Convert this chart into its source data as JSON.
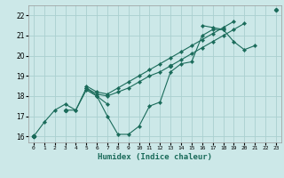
{
  "title": "",
  "xlabel": "Humidex (Indice chaleur)",
  "ylabel": "",
  "bg_color": "#cce8e8",
  "line_color": "#1a6b5a",
  "grid_color": "#aad0d0",
  "xlim": [
    -0.5,
    23.5
  ],
  "ylim": [
    15.7,
    22.5
  ],
  "xticks": [
    0,
    1,
    2,
    3,
    4,
    5,
    6,
    7,
    8,
    9,
    10,
    11,
    12,
    13,
    14,
    15,
    16,
    17,
    18,
    19,
    20,
    21,
    22,
    23
  ],
  "yticks": [
    16,
    17,
    18,
    19,
    20,
    21,
    22
  ],
  "series": [
    [
      16.0,
      16.7,
      17.3,
      17.6,
      17.3,
      18.3,
      18.0,
      17.0,
      16.1,
      16.1,
      16.5,
      17.5,
      17.7,
      19.2,
      19.6,
      19.7,
      21.0,
      21.3,
      21.3,
      20.7,
      20.3,
      20.5,
      null,
      22.3
    ],
    [
      16.0,
      null,
      null,
      17.3,
      17.3,
      18.4,
      18.0,
      17.6,
      null,
      null,
      null,
      null,
      null,
      19.5,
      null,
      null,
      21.5,
      21.4,
      21.3,
      null,
      null,
      null,
      null,
      null
    ],
    [
      16.0,
      null,
      null,
      17.3,
      null,
      18.4,
      18.1,
      18.0,
      18.2,
      18.4,
      18.7,
      19.0,
      19.2,
      19.5,
      19.8,
      20.1,
      20.4,
      20.7,
      21.0,
      21.3,
      21.6,
      null,
      null,
      null
    ],
    [
      16.0,
      null,
      null,
      null,
      null,
      18.5,
      18.2,
      18.1,
      18.4,
      18.7,
      19.0,
      19.3,
      19.6,
      19.9,
      20.2,
      20.5,
      20.8,
      21.1,
      21.4,
      21.7,
      null,
      null,
      null,
      null
    ]
  ]
}
